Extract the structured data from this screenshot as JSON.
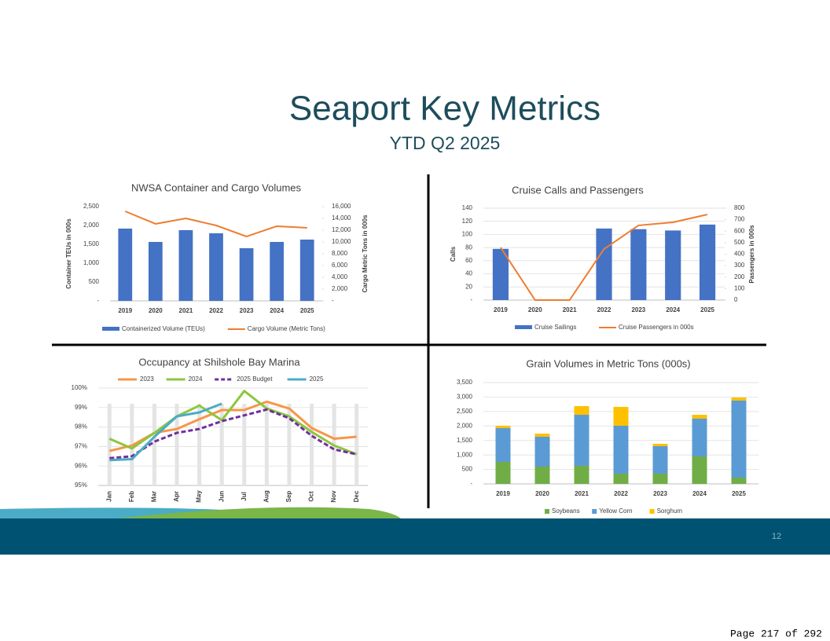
{
  "header": {
    "title": "Seaport Key Metrics",
    "subtitle": "YTD Q2 2025"
  },
  "slide_number": "12",
  "page_footer": "Page 217 of 292",
  "chart_data": [
    {
      "type": "combo",
      "title": "NWSA Container and Cargo Volumes",
      "categories": [
        "2019",
        "2020",
        "2021",
        "2022",
        "2023",
        "2024",
        "2025"
      ],
      "y_label": "Container TEUs in 000s",
      "y2_label": "Cargo Metric Tons in 000s",
      "ylim": [
        0,
        2500
      ],
      "yticks": [
        {
          "value": 0,
          "label": "-"
        },
        500,
        {
          "value": 1000,
          "label": "1,000"
        },
        {
          "value": 1500,
          "label": "1,500"
        },
        {
          "value": 2000,
          "label": "2,000"
        },
        {
          "value": 2500,
          "label": "2,500"
        }
      ],
      "y2lim": [
        0,
        16000
      ],
      "y2ticks": [
        {
          "value": 0,
          "label": "-"
        },
        {
          "value": 2000,
          "label": "2,000"
        },
        {
          "value": 4000,
          "label": "4,000"
        },
        {
          "value": 6000,
          "label": "6,000"
        },
        {
          "value": 8000,
          "label": "8,000"
        },
        {
          "value": 10000,
          "label": "10,000"
        },
        {
          "value": 12000,
          "label": "12,000"
        },
        {
          "value": 14000,
          "label": "14,000"
        },
        {
          "value": 16000,
          "label": "16,000"
        }
      ],
      "grid": false,
      "series": [
        {
          "name": "Containerized Volume (TEUs)",
          "type": "bar",
          "color": "#4472c4",
          "values": [
            1917,
            1563,
            1875,
            1792,
            1396,
            1563,
            1625
          ]
        },
        {
          "name": "Cargo Volume (Metric Tons)",
          "type": "line",
          "axis": "y2",
          "color": "#ed7d31",
          "values": [
            15200,
            13070,
            14000,
            12800,
            10930,
            12670,
            12400
          ]
        }
      ]
    },
    {
      "type": "combo",
      "title": "Cruise Calls and Passengers",
      "categories": [
        "2019",
        "2020",
        "2021",
        "2022",
        "2023",
        "2024",
        "2025"
      ],
      "y_label": "Calls",
      "y2_label": "Passengers in 000s",
      "ylim": [
        0,
        140
      ],
      "yticks": [
        {
          "value": 0,
          "label": "-"
        },
        20,
        40,
        60,
        80,
        100,
        120,
        140
      ],
      "y2lim": [
        0,
        800
      ],
      "y2ticks": [
        0,
        100,
        200,
        300,
        400,
        500,
        600,
        700,
        800
      ],
      "grid": true,
      "series": [
        {
          "name": "Cruise Sailings",
          "type": "bar",
          "color": "#4472c4",
          "values": [
            78,
            0,
            0,
            109,
            108,
            106,
            115
          ]
        },
        {
          "name": "Cruise Passengers in 000s",
          "type": "line",
          "axis": "y2",
          "color": "#ed7d31",
          "values": [
            458,
            0,
            0,
            444,
            650,
            677,
            745
          ]
        }
      ]
    },
    {
      "type": "line",
      "title": "Occupancy at Shilshole Bay Marina",
      "categories": [
        "Jan",
        "Feb",
        "Mar",
        "Apr",
        "May",
        "Jun",
        "Jul",
        "Aug",
        "Sep",
        "Oct",
        "Nov",
        "Dec"
      ],
      "ylim": [
        95,
        100
      ],
      "yticks": [
        {
          "value": 95,
          "label": "95%"
        },
        {
          "value": 96,
          "label": "96%"
        },
        {
          "value": 97,
          "label": "97%"
        },
        {
          "value": 98,
          "label": "98%"
        },
        {
          "value": 99,
          "label": "99%"
        },
        {
          "value": 100,
          "label": "100%"
        }
      ],
      "grid": true,
      "legend": "top",
      "series": [
        {
          "name": "2023",
          "color": "#f79646",
          "dash": false,
          "values": [
            96.77,
            97.05,
            97.7,
            97.9,
            98.4,
            98.87,
            98.87,
            99.3,
            98.95,
            97.95,
            97.4,
            97.5
          ]
        },
        {
          "name": "2024",
          "color": "#8dc63f",
          "dash": false,
          "values": [
            97.4,
            96.9,
            97.7,
            98.55,
            99.1,
            98.35,
            99.85,
            98.95,
            98.55,
            97.75,
            97.05,
            96.6
          ]
        },
        {
          "name": "2025 Budget",
          "color": "#7030a0",
          "dash": true,
          "values": [
            96.4,
            96.5,
            97.25,
            97.7,
            97.9,
            98.3,
            98.6,
            98.9,
            98.45,
            97.55,
            96.85,
            96.6
          ]
        },
        {
          "name": "2025",
          "color": "#4bacc6",
          "dash": false,
          "values": [
            96.3,
            96.35,
            97.5,
            98.55,
            98.75,
            99.2,
            null,
            null,
            null,
            null,
            null,
            null
          ]
        }
      ]
    },
    {
      "type": "stacked_bar",
      "title": "Grain Volumes in Metric Tons (000s)",
      "categories": [
        "2019",
        "2020",
        "2021",
        "2022",
        "2023",
        "2024",
        "2025"
      ],
      "ylim": [
        0,
        3500
      ],
      "yticks": [
        {
          "value": 0,
          "label": "-"
        },
        500,
        {
          "value": 1000,
          "label": "1,000"
        },
        {
          "value": 1500,
          "label": "1,500"
        },
        {
          "value": 2000,
          "label": "2,000"
        },
        {
          "value": 2500,
          "label": "2,500"
        },
        {
          "value": 3000,
          "label": "3,000"
        },
        {
          "value": 3500,
          "label": "3,500"
        }
      ],
      "grid": true,
      "legend": "bottom",
      "series": [
        {
          "name": "Soybeans",
          "color": "#70ad47",
          "values": [
            760,
            597,
            624,
            353,
            353,
            950,
            217
          ]
        },
        {
          "name": "Yellow Corn",
          "color": "#5b9bd5",
          "values": [
            1166,
            1031,
            1763,
            1655,
            949,
            1302,
            2659
          ]
        },
        {
          "name": "Sorghum",
          "color": "#ffc000",
          "values": [
            80,
            108,
            299,
            651,
            82,
            135,
            108
          ]
        }
      ]
    }
  ]
}
